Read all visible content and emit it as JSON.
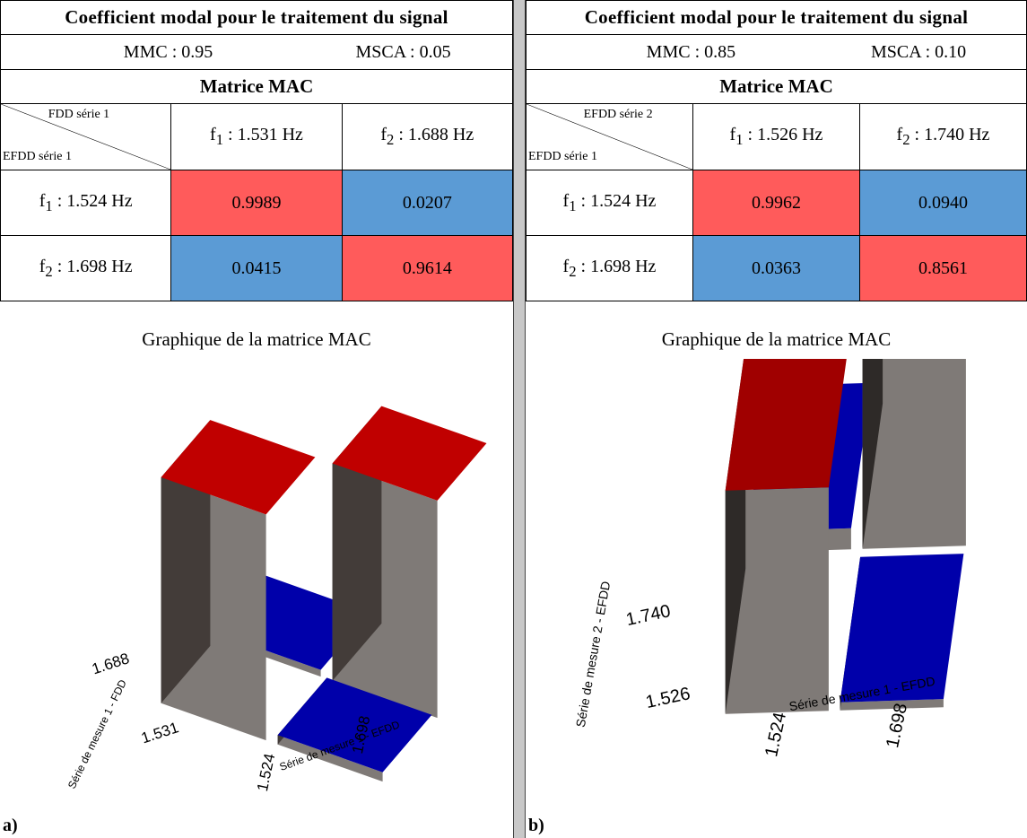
{
  "panels": [
    {
      "label": "a)",
      "title": "Coefficient modal pour le traitement du signal",
      "mmc": "MMC : 0.95",
      "msca": "MSCA : 0.05",
      "mac_title": "Matrice MAC",
      "corner_top": "FDD série 1",
      "corner_bottom": "EFDD série 1",
      "col_headers": [
        {
          "sym": "f",
          "sub": "1",
          "text": " : 1.531 Hz"
        },
        {
          "sym": "f",
          "sub": "2",
          "text": " : 1.688 Hz"
        }
      ],
      "row_headers": [
        {
          "sym": "f",
          "sub": "1",
          "text": " : 1.524 Hz"
        },
        {
          "sym": "f",
          "sub": "2",
          "text": " : 1.698 Hz"
        }
      ],
      "values": [
        [
          "0.9989",
          "0.0207"
        ],
        [
          "0.0415",
          "0.9614"
        ]
      ]
    },
    {
      "label": "b)",
      "title": "Coefficient modal pour le traitement du signal",
      "mmc": "MMC : 0.85",
      "msca": "MSCA : 0.10",
      "mac_title": "Matrice MAC",
      "corner_top": "EFDD série 2",
      "corner_bottom": "EFDD série 1",
      "col_headers": [
        {
          "sym": "f",
          "sub": "1",
          "text": " : 1.526 Hz"
        },
        {
          "sym": "f",
          "sub": "2",
          "text": " : 1.740 Hz"
        }
      ],
      "row_headers": [
        {
          "sym": "f",
          "sub": "1",
          "text": " : 1.524 Hz"
        },
        {
          "sym": "f",
          "sub": "2",
          "text": " : 1.698 Hz"
        }
      ],
      "values": [
        [
          "0.9962",
          "0.0940"
        ],
        [
          "0.0363",
          "0.8561"
        ]
      ]
    }
  ],
  "colors": {
    "high": "#ff5b5b",
    "low": "#5b9bd5",
    "bar_top_high": "#c00000",
    "bar_top_low": "#0000aa",
    "bar_side": "#7f7a77"
  },
  "chart_data": [
    {
      "type": "bar3d",
      "title": "Graphique de la matrice MAC",
      "xlabel": "Série de mesure 1 - EFDD",
      "ylabel": "Série de mesure 1 - FDD",
      "x": [
        "1.524",
        "1.698"
      ],
      "y": [
        "1.531",
        "1.688"
      ],
      "values": [
        [
          0.9989,
          0.0207
        ],
        [
          0.0415,
          0.9614
        ]
      ],
      "zlim": [
        0,
        1
      ]
    },
    {
      "type": "bar3d",
      "title": "Graphique de la matrice MAC",
      "xlabel": "Série de mesure 1 - EFDD",
      "ylabel": "Série de mesure 2 - EFDD",
      "x": [
        "1.524",
        "1.698"
      ],
      "y": [
        "1.526",
        "1.740"
      ],
      "values": [
        [
          0.9962,
          0.094
        ],
        [
          0.0363,
          0.8561
        ]
      ],
      "zlim": [
        0,
        1
      ]
    }
  ]
}
